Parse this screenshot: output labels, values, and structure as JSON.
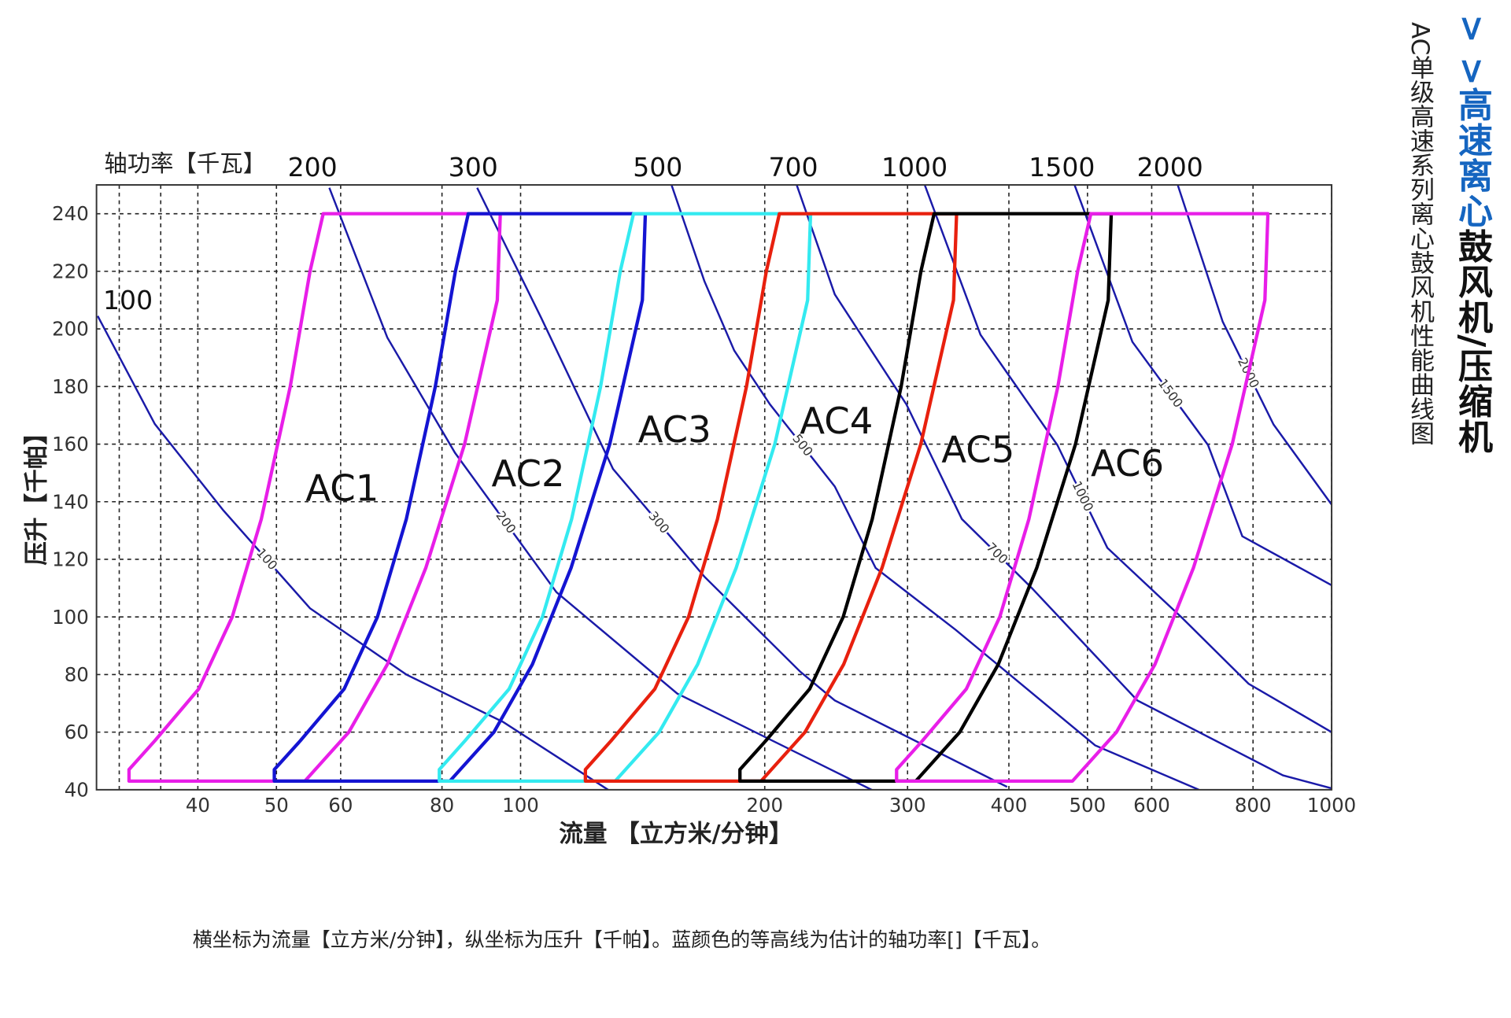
{
  "title": {
    "blue_part": "> >高速离心",
    "black_part": "鼓风机/压缩机",
    "subtitle": "AC单级高速系列离心鼓风机性能曲线图"
  },
  "caption": "横坐标为流量【立方米/分钟】，纵坐标为压升【千帕】。蓝颜色的等高线为估计的轴功率[]【千瓦】。",
  "chart_data": {
    "type": "line",
    "xlabel": "流量 【立方米/分钟】",
    "ylabel": "压升【千帕】",
    "top_axis_label": "轴功率【千瓦】",
    "x_scale": "log",
    "xlim": [
      30,
      1000
    ],
    "ylim": [
      40,
      250
    ],
    "grid": true,
    "x_ticks": [
      40,
      50,
      60,
      80,
      100,
      200,
      300,
      400,
      500,
      600,
      800,
      1000
    ],
    "x_grid_extra": [
      32,
      36
    ],
    "y_ticks": [
      40,
      60,
      80,
      100,
      120,
      140,
      160,
      180,
      200,
      220,
      240
    ],
    "top_axis_ticks": [
      {
        "label": "100",
        "flow": 32.8
      },
      {
        "label": "200",
        "flow": 55.4
      },
      {
        "label": "300",
        "flow": 87.4
      },
      {
        "label": "500",
        "flow": 147.6
      },
      {
        "label": "700",
        "flow": 216.9
      },
      {
        "label": "1000",
        "flow": 306
      },
      {
        "label": "1500",
        "flow": 465
      },
      {
        "label": "2000",
        "flow": 632
      }
    ],
    "contour_color": "#1a1aa8",
    "power_contours": [
      {
        "power": "100",
        "points": [
          [
            30.1,
            204.5
          ],
          [
            35.4,
            167
          ],
          [
            43.0,
            137
          ],
          [
            55.0,
            103
          ],
          [
            72.3,
            80
          ],
          [
            95.2,
            63.5
          ],
          [
            129,
            39.5
          ]
        ]
      },
      {
        "power": "200",
        "points": [
          [
            58.1,
            249
          ],
          [
            68.5,
            197
          ],
          [
            83.0,
            157
          ],
          [
            110.7,
            108.6
          ],
          [
            156,
            73.4
          ],
          [
            274,
            39.3
          ]
        ]
      },
      {
        "power": "300",
        "points": [
          [
            88.4,
            249
          ],
          [
            106,
            203.9
          ],
          [
            130,
            151.4
          ],
          [
            168.5,
            114
          ],
          [
            221,
            81.1
          ],
          [
            244,
            71
          ],
          [
            398,
            41
          ]
        ]
      },
      {
        "power": "500",
        "points": [
          [
            153.5,
            250
          ],
          [
            168.5,
            216.6
          ],
          [
            183.4,
            192.5
          ],
          [
            203,
            173.8
          ],
          [
            244,
            145.3
          ],
          [
            274,
            117
          ],
          [
            344,
            95.5
          ],
          [
            511,
            55.4
          ],
          [
            686,
            40
          ]
        ]
      },
      {
        "power": "700",
        "points": [
          [
            219,
            250
          ],
          [
            244,
            212
          ],
          [
            299,
            173.8
          ],
          [
            350,
            134
          ],
          [
            427,
            110
          ],
          [
            576,
            71
          ],
          [
            871,
            45
          ],
          [
            1000,
            40.5
          ]
        ]
      },
      {
        "power": "1000",
        "points": [
          [
            315,
            250
          ],
          [
            369,
            198
          ],
          [
            459,
            159.7
          ],
          [
            529,
            124
          ],
          [
            655,
            99.5
          ],
          [
            790,
            76.8
          ],
          [
            1000,
            60
          ]
        ]
      },
      {
        "power": "1500",
        "points": [
          [
            482,
            250
          ],
          [
            568,
            195.5
          ],
          [
            704,
            159.7
          ],
          [
            776,
            128
          ],
          [
            1000,
            111
          ]
        ]
      },
      {
        "power": "2000",
        "points": [
          [
            646,
            250
          ],
          [
            734,
            202.5
          ],
          [
            848,
            166.8
          ],
          [
            1000,
            139
          ]
        ]
      }
    ],
    "series": [
      {
        "name": "AC1",
        "color": "#e81ee8",
        "points": [
          [
            57.1,
            240
          ],
          [
            94.4,
            240
          ],
          [
            93.6,
            210
          ],
          [
            85.3,
            160
          ],
          [
            76.4,
            117
          ],
          [
            68.5,
            83.5
          ],
          [
            61.4,
            60
          ],
          [
            54.2,
            43
          ],
          [
            32.9,
            43
          ],
          [
            32.9,
            47
          ],
          [
            35.4,
            57
          ],
          [
            40.1,
            75
          ],
          [
            44.1,
            100
          ],
          [
            47.9,
            134
          ],
          [
            52.0,
            180
          ],
          [
            55.0,
            220
          ]
        ]
      },
      {
        "name": "AC2",
        "color": "#1414d2",
        "points": [
          [
            86.2,
            240
          ],
          [
            142.5,
            240
          ],
          [
            141.3,
            210
          ],
          [
            128.8,
            160
          ],
          [
            115.4,
            117
          ],
          [
            103.4,
            83.5
          ],
          [
            92.7,
            60
          ],
          [
            81.8,
            43
          ],
          [
            49.7,
            43
          ],
          [
            49.7,
            47
          ],
          [
            53.5,
            57
          ],
          [
            60.6,
            75
          ],
          [
            66.6,
            100
          ],
          [
            72.3,
            134
          ],
          [
            78.5,
            180
          ],
          [
            83.1,
            220
          ]
        ]
      },
      {
        "name": "AC3",
        "color": "#33eaf0",
        "points": [
          [
            137.8,
            240
          ],
          [
            227.8,
            240
          ],
          [
            225.9,
            210
          ],
          [
            205.8,
            160
          ],
          [
            184.4,
            117
          ],
          [
            165.3,
            83.5
          ],
          [
            148.2,
            60
          ],
          [
            130.8,
            43
          ],
          [
            79.4,
            43
          ],
          [
            79.4,
            47
          ],
          [
            85.4,
            57
          ],
          [
            96.8,
            75
          ],
          [
            106.4,
            100
          ],
          [
            115.6,
            134
          ],
          [
            125.5,
            180
          ],
          [
            132.7,
            220
          ]
        ]
      },
      {
        "name": "AC4",
        "color": "#e8200e",
        "points": [
          [
            208.5,
            240
          ],
          [
            344.8,
            240
          ],
          [
            341.8,
            210
          ],
          [
            311.5,
            160
          ],
          [
            279.0,
            117
          ],
          [
            250.2,
            83.5
          ],
          [
            224.2,
            60
          ],
          [
            197.9,
            43
          ],
          [
            120.2,
            43
          ],
          [
            120.2,
            47
          ],
          [
            129.3,
            57
          ],
          [
            146.4,
            75
          ],
          [
            161.1,
            100
          ],
          [
            174.9,
            134
          ],
          [
            189.9,
            180
          ],
          [
            200.9,
            220
          ]
        ]
      },
      {
        "name": "AC5",
        "color": "#000000",
        "points": [
          [
            323.5,
            240
          ],
          [
            534.9,
            240
          ],
          [
            530.3,
            210
          ],
          [
            483.3,
            160
          ],
          [
            432.9,
            117
          ],
          [
            388.1,
            83.5
          ],
          [
            347.9,
            60
          ],
          [
            307.1,
            43
          ],
          [
            186.4,
            43
          ],
          [
            186.4,
            47
          ],
          [
            200.6,
            57
          ],
          [
            227.2,
            75
          ],
          [
            249.9,
            100
          ],
          [
            271.4,
            134
          ],
          [
            294.6,
            180
          ],
          [
            311.6,
            220
          ]
        ]
      },
      {
        "name": "AC6",
        "color": "#e81ee8",
        "points": [
          [
            504.8,
            240
          ],
          [
            834.5,
            240
          ],
          [
            827.4,
            210
          ],
          [
            754.1,
            160
          ],
          [
            675.4,
            117
          ],
          [
            605.5,
            83.5
          ],
          [
            542.8,
            60
          ],
          [
            479.1,
            43
          ],
          [
            290.8,
            43
          ],
          [
            290.8,
            47
          ],
          [
            312.9,
            57
          ],
          [
            354.5,
            75
          ],
          [
            389.8,
            100
          ],
          [
            423.4,
            134
          ],
          [
            459.7,
            180
          ],
          [
            486.2,
            220
          ]
        ]
      }
    ]
  }
}
